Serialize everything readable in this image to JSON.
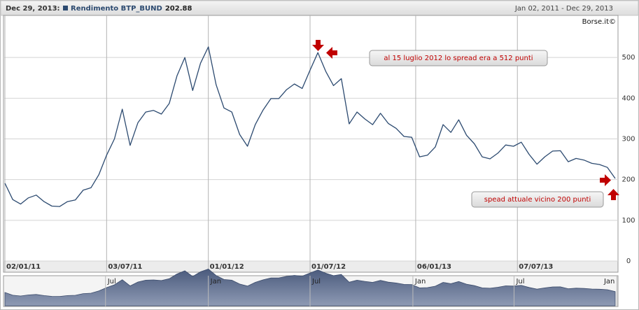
{
  "chart_data": {
    "type": "line",
    "date_label": "Dec 29, 2013:",
    "last_value": 202.88,
    "range_label": "Jan 02, 2011 - Dec 29, 2013",
    "watermark": "Borse.it©",
    "grid": true,
    "xlim": [
      "02/01/11",
      "29/12/13"
    ],
    "xticks": [
      "02/01/11",
      "03/07/11",
      "01/01/12",
      "01/07/12",
      "06/01/13",
      "07/07/13"
    ],
    "ylim": [
      0,
      600
    ],
    "yticks": [
      0,
      100,
      200,
      300,
      400,
      500
    ],
    "x": [
      "02/01/11",
      "16/01/11",
      "30/01/11",
      "13/02/11",
      "27/02/11",
      "13/03/11",
      "27/03/11",
      "10/04/11",
      "24/04/11",
      "08/05/11",
      "22/05/11",
      "05/06/11",
      "19/06/11",
      "03/07/11",
      "17/07/11",
      "31/07/11",
      "14/08/11",
      "28/08/11",
      "11/09/11",
      "25/09/11",
      "09/10/11",
      "23/10/11",
      "06/11/11",
      "20/11/11",
      "04/12/11",
      "18/12/11",
      "01/01/12",
      "15/01/12",
      "29/01/12",
      "12/02/12",
      "26/02/12",
      "11/03/12",
      "25/03/12",
      "08/04/12",
      "22/04/12",
      "06/05/12",
      "20/05/12",
      "03/06/12",
      "17/06/12",
      "01/07/12",
      "15/07/12",
      "29/07/12",
      "12/08/12",
      "26/08/12",
      "09/09/12",
      "23/09/12",
      "07/10/12",
      "21/10/12",
      "04/11/12",
      "18/11/12",
      "02/12/12",
      "16/12/12",
      "30/12/12",
      "13/01/13",
      "27/01/13",
      "10/02/13",
      "24/02/13",
      "10/03/13",
      "24/03/13",
      "07/04/13",
      "21/04/13",
      "05/05/13",
      "19/05/13",
      "02/06/13",
      "16/06/13",
      "30/06/13",
      "14/07/13",
      "28/07/13",
      "11/08/13",
      "25/08/13",
      "08/09/13",
      "22/09/13",
      "06/10/13",
      "20/10/13",
      "03/11/13",
      "17/11/13",
      "01/12/13",
      "15/12/13",
      "29/12/13"
    ],
    "series": [
      {
        "name": "Rendimento BTP_BUND",
        "color": "#2c4a70",
        "values": [
          191,
          151,
          140,
          155,
          162,
          146,
          135,
          134,
          146,
          150,
          174,
          180,
          212,
          260,
          300,
          373,
          284,
          340,
          366,
          370,
          361,
          387,
          455,
          500,
          419,
          486,
          526,
          433,
          376,
          366,
          311,
          282,
          335,
          371,
          399,
          399,
          421,
          435,
          424,
          469,
          512,
          466,
          431,
          448,
          337,
          366,
          349,
          335,
          363,
          338,
          326,
          306,
          304,
          256,
          260,
          280,
          335,
          316,
          347,
          309,
          288,
          256,
          251,
          265,
          285,
          282,
          292,
          262,
          238,
          256,
          270,
          271,
          244,
          252,
          248,
          240,
          237,
          230,
          202.88
        ]
      }
    ],
    "annotations": [
      {
        "text": "al 15 luglio 2012 lo spread era a 512 punti"
      },
      {
        "text": "spead attuale  vicino 200 punti"
      }
    ],
    "navigator_ticks": [
      {
        "value": "01/07/11",
        "label": "Jul"
      },
      {
        "value": "01/01/12",
        "label": "Jan"
      },
      {
        "value": "01/07/12",
        "label": "Jul"
      },
      {
        "value": "01/01/13",
        "label": "Jan"
      },
      {
        "value": "01/07/13",
        "label": "Jul"
      },
      {
        "value": "01/01/14",
        "label": "Jan"
      }
    ]
  }
}
